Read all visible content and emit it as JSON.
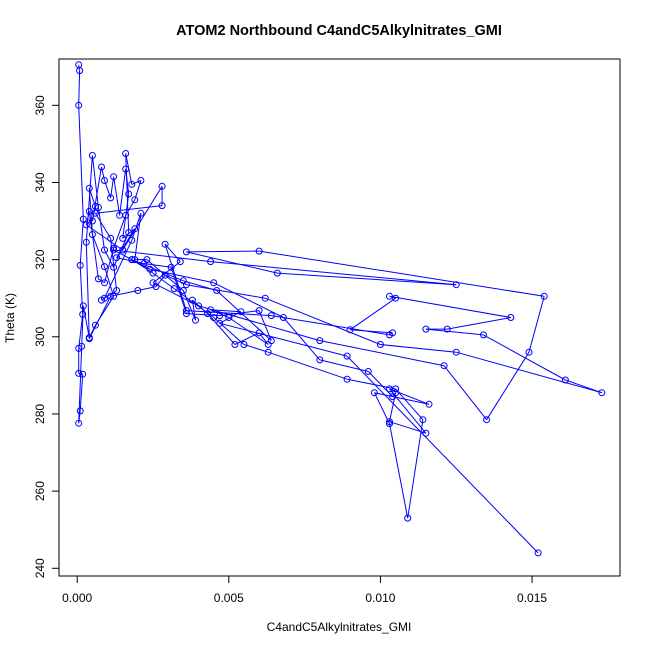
{
  "chart_data": {
    "type": "scatter",
    "title": "ATOM2 Northbound C4andC5Alkylnitrates_GMI",
    "xlabel": "C4andC5Alkylnitrates_GMI",
    "ylabel": "Theta (K)",
    "xlim": [
      -0.0006,
      0.0179
    ],
    "ylim": [
      238,
      372
    ],
    "x_ticks": [
      0.0,
      0.005,
      0.01,
      0.015
    ],
    "x_tick_labels": [
      "0.000",
      "0.005",
      "0.010",
      "0.015"
    ],
    "y_ticks": [
      240,
      260,
      280,
      300,
      320,
      340,
      360
    ],
    "y_tick_labels": [
      "240",
      "260",
      "280",
      "300",
      "320",
      "340",
      "360"
    ],
    "line_style": "points-and-lines",
    "colors": {
      "series": "#0000ff",
      "axes": "#000000",
      "background": "#ffffff"
    },
    "series": [
      {
        "points": [
          [
            5e-05,
            370.5
          ],
          [
            8e-05,
            369.0
          ],
          [
            5e-05,
            360.0
          ],
          [
            0.0002,
            330.5
          ],
          [
            0.0001,
            318.5
          ],
          [
            0.00018,
            305.8
          ],
          [
            5e-05,
            297.0
          ],
          [
            5e-05,
            290.5
          ],
          [
            0.00018,
            290.3
          ],
          [
            0.0001,
            280.8
          ],
          [
            5e-05,
            277.6
          ],
          [
            0.00015,
            297.5
          ],
          [
            0.0002,
            308.0
          ],
          [
            0.0004,
            299.8
          ],
          [
            0.0006,
            303.0
          ],
          [
            0.0012,
            310.5
          ],
          [
            0.0009,
            318.2
          ],
          [
            0.0005,
            326.5
          ],
          [
            0.0004,
            338.5
          ],
          [
            0.0006,
            333.8
          ],
          [
            0.0005,
            330.0
          ],
          [
            0.0008,
            344.0
          ],
          [
            0.0009,
            340.5
          ],
          [
            0.0011,
            336.0
          ],
          [
            0.0012,
            341.5
          ],
          [
            0.0014,
            331.5
          ],
          [
            0.0016,
            343.5
          ],
          [
            0.0017,
            337.0
          ],
          [
            0.0015,
            325.5
          ],
          [
            0.0019,
            328.0
          ],
          [
            0.0013,
            320.5
          ],
          [
            0.0022,
            319.0
          ],
          [
            0.0031,
            318.0
          ],
          [
            0.0036,
            306.0
          ],
          [
            0.0047,
            305.5
          ],
          [
            0.006,
            306.8
          ],
          [
            0.0064,
            299.0
          ],
          [
            0.0046,
            312.0
          ],
          [
            0.0035,
            314.5
          ],
          [
            0.0018,
            320.0
          ],
          [
            0.0024,
            317.5
          ],
          [
            0.0045,
            314.0
          ],
          [
            0.0068,
            305.0
          ],
          [
            0.008,
            294.0
          ],
          [
            0.0096,
            291.0
          ],
          [
            0.0104,
            284.5
          ],
          [
            0.0105,
            285.5
          ],
          [
            0.0103,
            278.0
          ],
          [
            0.0115,
            275.0
          ],
          [
            0.0103,
            286.5
          ],
          [
            0.0116,
            282.5
          ],
          [
            0.0098,
            285.5
          ],
          [
            0.0103,
            277.5
          ],
          [
            0.0109,
            253.0
          ],
          [
            0.0114,
            278.5
          ],
          [
            0.0105,
            286.5
          ],
          [
            0.0089,
            289.0
          ],
          [
            0.0063,
            296.0
          ],
          [
            0.0055,
            298.0
          ],
          [
            0.0045,
            305.0
          ],
          [
            0.0032,
            312.5
          ],
          [
            0.0025,
            316.5
          ],
          [
            0.0018,
            320.0
          ],
          [
            0.0012,
            322.5
          ],
          [
            0.0044,
            319.5
          ],
          [
            0.0125,
            313.5
          ],
          [
            0.0066,
            316.5
          ],
          [
            0.0036,
            322.0
          ],
          [
            0.006,
            322.2
          ],
          [
            0.0154,
            310.5
          ],
          [
            0.0149,
            296.0
          ],
          [
            0.0135,
            278.5
          ],
          [
            0.0121,
            292.5
          ],
          [
            0.008,
            299.0
          ],
          [
            0.004,
            308.0
          ],
          [
            0.0025,
            314.0
          ],
          [
            0.0034,
            319.5
          ],
          [
            0.0029,
            324.0
          ],
          [
            0.0036,
            306.8
          ],
          [
            0.0064,
            305.5
          ],
          [
            0.0103,
            300.5
          ],
          [
            0.0104,
            301.0
          ],
          [
            0.009,
            301.8
          ],
          [
            0.0105,
            310.0
          ],
          [
            0.0103,
            310.5
          ],
          [
            0.0143,
            305.0
          ],
          [
            0.0122,
            302.0
          ],
          [
            0.0115,
            302.0
          ],
          [
            0.0134,
            300.5
          ],
          [
            0.0161,
            288.8
          ],
          [
            0.0173,
            285.5
          ],
          [
            0.0125,
            296.0
          ],
          [
            0.01,
            298.0
          ],
          [
            0.0062,
            310.0
          ],
          [
            0.0036,
            313.5
          ],
          [
            0.0029,
            316.0
          ],
          [
            0.0026,
            313.0
          ],
          [
            0.002,
            312.0
          ],
          [
            0.0011,
            310.5
          ],
          [
            0.0004,
            299.5
          ],
          [
            0.0003,
            324.5
          ],
          [
            0.0005,
            347.0
          ],
          [
            0.0007,
            333.5
          ],
          [
            0.0009,
            322.5
          ],
          [
            0.0012,
            318.0
          ],
          [
            0.0017,
            327.0
          ],
          [
            0.0016,
            347.5
          ],
          [
            0.0018,
            339.5
          ],
          [
            0.0021,
            340.5
          ],
          [
            0.0019,
            335.5
          ],
          [
            0.0016,
            331.5
          ],
          [
            0.0012,
            323.0
          ],
          [
            0.0009,
            314.0
          ],
          [
            0.0007,
            315.0
          ],
          [
            0.0004,
            332.5
          ],
          [
            0.0003,
            329.0
          ],
          [
            0.0015,
            322.5
          ],
          [
            0.0028,
            339.0
          ],
          [
            0.0028,
            334.0
          ],
          [
            0.0006,
            332.0
          ],
          [
            0.0011,
            325.5
          ],
          [
            0.0013,
            312.0
          ],
          [
            0.0008,
            309.5
          ],
          [
            0.0009,
            310.0
          ],
          [
            0.0018,
            325.0
          ],
          [
            0.0021,
            332.0
          ],
          [
            0.0019,
            320.0
          ],
          [
            0.0023,
            320.0
          ],
          [
            0.0035,
            312.0
          ],
          [
            0.0039,
            304.3
          ],
          [
            0.0038,
            309.5
          ],
          [
            0.0043,
            306.0
          ],
          [
            0.0052,
            298.0
          ],
          [
            0.006,
            301.0
          ],
          [
            0.0063,
            298.0
          ],
          [
            0.005,
            305.0
          ],
          [
            0.0044,
            307.0
          ],
          [
            0.0054,
            306.5
          ],
          [
            0.0047,
            303.5
          ],
          [
            0.0089,
            295.0
          ],
          [
            0.0152,
            244.0
          ]
        ]
      }
    ]
  }
}
